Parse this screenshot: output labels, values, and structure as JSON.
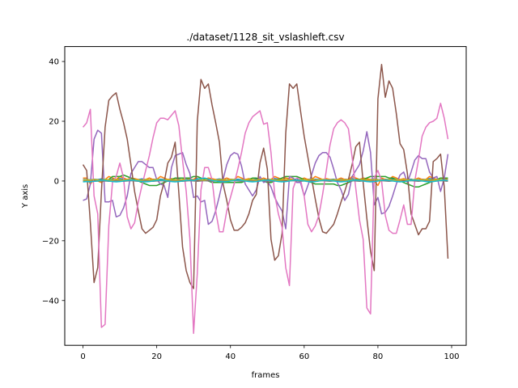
{
  "chart_data": {
    "type": "line",
    "title": "./dataset/1128_sit_vslashleft.csv",
    "xlabel": "frames",
    "ylabel": "Y axis",
    "xlim": [
      -4.95,
      103.95
    ],
    "ylim": [
      -55,
      45
    ],
    "xticks": [
      0,
      20,
      40,
      60,
      80,
      100
    ],
    "yticks": [
      -40,
      -20,
      0,
      20,
      40
    ],
    "ytick_labels": [
      "−40",
      "−20",
      "0",
      "20",
      "40"
    ],
    "grid": false,
    "legend": "none",
    "colors": [
      "#1f77b4",
      "#ff7f0e",
      "#2ca02c",
      "#d62728",
      "#9467bd",
      "#8c564b",
      "#e377c2",
      "#7f7f7f",
      "#bcbd22",
      "#17becf"
    ],
    "x": [
      0,
      1,
      2,
      3,
      4,
      5,
      6,
      7,
      8,
      9,
      10,
      11,
      12,
      13,
      14,
      15,
      16,
      17,
      18,
      19,
      20,
      21,
      22,
      23,
      24,
      25,
      26,
      27,
      28,
      29,
      30,
      31,
      32,
      33,
      34,
      35,
      36,
      37,
      38,
      39,
      40,
      41,
      42,
      43,
      44,
      45,
      46,
      47,
      48,
      49,
      50,
      51,
      52,
      53,
      54,
      55,
      56,
      57,
      58,
      59,
      60,
      61,
      62,
      63,
      64,
      65,
      66,
      67,
      68,
      69,
      70,
      71,
      72,
      73,
      74,
      75,
      76,
      77,
      78,
      79,
      80,
      81,
      82,
      83,
      84,
      85,
      86,
      87,
      88,
      89,
      90,
      91,
      92,
      93,
      94,
      95,
      96,
      97,
      98,
      99
    ],
    "series": [
      {
        "values": [
          0.5,
          0.5,
          0.4,
          0.6,
          0.5,
          0.7,
          0.5,
          0.4,
          0.6,
          0.5,
          0.8,
          0.6,
          0.5,
          0.4,
          0.6,
          0.5,
          0.7,
          0.5,
          0.4,
          0.6,
          0.5,
          0.6,
          0.5,
          0.4,
          0.7,
          0.5,
          0.6,
          0.4,
          0.5,
          0.6,
          0.5,
          0.8,
          0.6,
          0.5,
          0.4,
          0.6,
          0.5,
          0.7,
          0.5,
          0.4,
          0.6,
          0.5,
          0.6,
          0.5,
          0.4,
          0.7,
          0.5,
          0.6,
          0.4,
          0.5,
          0.6,
          0.5,
          0.8,
          0.6,
          0.5,
          0.4,
          0.6,
          0.5,
          0.7,
          0.5,
          0.4,
          0.6,
          0.5,
          0.6,
          0.5,
          0.4,
          0.7,
          0.5,
          0.6,
          0.4,
          0.5,
          0.6,
          0.5,
          0.8,
          0.6,
          0.5,
          0.4,
          0.6,
          0.5,
          0.7,
          0.5,
          0.4,
          0.6,
          0.5,
          0.6,
          0.5,
          0.4,
          0.7,
          0.5,
          0.6,
          0.4,
          0.5,
          0.6,
          0.5,
          0.8,
          0.6,
          0.5,
          0.4,
          0.6,
          0.5
        ]
      },
      {
        "values": [
          1.0,
          1.0,
          -1.0,
          0.5,
          0.0,
          -0.5,
          0.5,
          1.5,
          1.0,
          0.5,
          1.5,
          1.0,
          0.5,
          1.0,
          0.8,
          0.5,
          0.0,
          0.5,
          1.0,
          0.5,
          0.5,
          1.5,
          1.0,
          0.5,
          0.8,
          0.5,
          0.3,
          0.5,
          1.0,
          0.5,
          0.5,
          1.5,
          1.0,
          0.5,
          1.0,
          0.8,
          0.5,
          0.0,
          0.5,
          1.0,
          0.5,
          0.5,
          1.5,
          1.0,
          0.5,
          0.8,
          0.5,
          0.3,
          0.5,
          1.0,
          0.5,
          0.5,
          1.5,
          1.0,
          0.5,
          1.0,
          0.8,
          0.5,
          0.0,
          0.5,
          1.0,
          0.5,
          0.5,
          1.5,
          1.0,
          0.5,
          0.8,
          0.5,
          0.3,
          0.5,
          1.0,
          0.5,
          0.5,
          1.5,
          1.0,
          0.5,
          1.0,
          0.8,
          0.5,
          0.0,
          -1.5,
          1.0,
          0.5,
          0.5,
          1.5,
          1.0,
          0.5,
          0.8,
          0.5,
          0.3,
          0.5,
          1.0,
          0.5,
          0.5,
          1.5,
          1.0,
          0.5,
          1.0,
          0.8,
          0.5
        ]
      },
      {
        "values": [
          0.0,
          0.0,
          0.0,
          0.0,
          0.0,
          0.0,
          0.0,
          0.5,
          1.5,
          1.5,
          1.5,
          2.0,
          1.5,
          1.0,
          0.5,
          0.0,
          -0.5,
          -1.0,
          -1.5,
          -1.5,
          -1.5,
          -1.0,
          -0.5,
          0.0,
          0.5,
          1.0,
          1.0,
          1.0,
          1.0,
          1.0,
          1.5,
          1.5,
          1.0,
          0.5,
          0.0,
          -0.5,
          -0.5,
          -0.5,
          -0.5,
          -0.5,
          -0.5,
          -0.5,
          -0.5,
          -0.5,
          0.0,
          0.5,
          1.0,
          1.0,
          0.5,
          0.0,
          -0.5,
          -0.5,
          0.0,
          0.5,
          1.0,
          1.5,
          1.5,
          1.5,
          1.5,
          1.0,
          0.5,
          0.0,
          -0.5,
          -1.0,
          -1.0,
          -1.0,
          -1.0,
          -1.0,
          -1.0,
          -1.5,
          -1.5,
          -1.0,
          -0.5,
          0.0,
          0.5,
          0.5,
          0.5,
          1.0,
          1.5,
          1.5,
          1.5,
          1.5,
          1.5,
          1.0,
          1.0,
          0.5,
          0.0,
          -0.5,
          -1.0,
          -1.5,
          -2.0,
          -2.0,
          -1.5,
          -1.0,
          -0.5,
          0.0,
          0.5,
          1.0,
          1.0,
          1.0
        ]
      },
      {
        "values": [
          0.2,
          0.2,
          0.2,
          0.2,
          0.2,
          0.2,
          0.2,
          0.2,
          0.2,
          0.2,
          0.2,
          0.2,
          0.2,
          0.2,
          0.2,
          0.2,
          0.2,
          0.2,
          0.2,
          0.2,
          0.2,
          0.2,
          0.2,
          0.2,
          0.2,
          0.2,
          0.2,
          0.2,
          0.2,
          0.2,
          0.2,
          0.2,
          0.2,
          0.2,
          0.2,
          0.2,
          0.2,
          0.2,
          0.2,
          0.2,
          0.2,
          0.2,
          0.2,
          0.2,
          0.2,
          0.2,
          0.2,
          0.2,
          0.2,
          0.2,
          0.2,
          0.2,
          0.2,
          0.2,
          0.2,
          0.2,
          0.2,
          0.2,
          0.2,
          0.2,
          0.2,
          0.2,
          0.2,
          0.2,
          0.2,
          0.2,
          0.2,
          0.2,
          0.2,
          0.2,
          0.2,
          0.2,
          0.2,
          0.2,
          0.2,
          0.2,
          0.2,
          0.2,
          0.2,
          0.2,
          0.2,
          0.2,
          0.2,
          0.2,
          0.2,
          0.2,
          0.2,
          0.2,
          0.2,
          0.2,
          0.2,
          0.2,
          0.2,
          0.2,
          0.2,
          0.2,
          0.2,
          0.2,
          0.2,
          0.2
        ]
      },
      {
        "values": [
          -6.5,
          -6.0,
          -1.0,
          14.0,
          17.0,
          16.0,
          -7.0,
          -7.0,
          -6.5,
          -12.0,
          -11.5,
          -9.0,
          -5.0,
          2.5,
          4.5,
          6.5,
          6.5,
          5.5,
          4.5,
          4.5,
          0.5,
          -1.0,
          -1.5,
          -5.5,
          4.5,
          8.5,
          9.0,
          9.5,
          5.5,
          2.5,
          -5.5,
          -5.0,
          -7.0,
          -6.5,
          -14.5,
          -13.5,
          -10.0,
          -5.0,
          0.5,
          5.5,
          8.5,
          9.5,
          9.0,
          5.0,
          -1.0,
          -3.0,
          -5.0,
          -3.0,
          1.5,
          -0.5,
          0.0,
          -2.0,
          -5.5,
          -8.0,
          -10.0,
          -16.0,
          1.5,
          1.0,
          -0.5,
          -0.5,
          -5.0,
          -1.5,
          2.0,
          6.0,
          8.5,
          9.5,
          9.5,
          8.0,
          4.0,
          -0.5,
          -3.0,
          -6.5,
          -4.5,
          1.5,
          3.5,
          5.5,
          10.0,
          16.5,
          9.5,
          -8.0,
          -5.5,
          -11.0,
          -10.5,
          -8.5,
          -5.0,
          -1.0,
          2.0,
          3.0,
          -0.5,
          3.0,
          7.0,
          8.5,
          7.5,
          7.5,
          3.0,
          1.0,
          1.5,
          -3.5,
          1.0,
          9.0
        ]
      },
      {
        "values": [
          5.5,
          3.5,
          -14.0,
          -34.0,
          -29.0,
          -3.5,
          18.0,
          27.0,
          28.5,
          29.5,
          24.0,
          19.5,
          14.0,
          5.5,
          -3.5,
          -10.0,
          -16.0,
          -17.5,
          -16.5,
          -15.5,
          -13.0,
          -5.0,
          -0.5,
          6.0,
          8.0,
          13.0,
          -4.0,
          -22.0,
          -30.0,
          -34.0,
          -36.0,
          20.0,
          34.0,
          31.0,
          32.5,
          25.5,
          19.5,
          13.0,
          -1.0,
          -6.5,
          -13.0,
          -16.5,
          -16.5,
          -15.5,
          -14.0,
          -11.0,
          -6.5,
          -4.5,
          6.0,
          11.0,
          4.0,
          -19.5,
          -26.5,
          -25.0,
          -17.5,
          16.0,
          32.5,
          31.0,
          32.5,
          23.5,
          15.0,
          8.0,
          1.0,
          -6.0,
          -12.5,
          -17.0,
          -17.5,
          -16.0,
          -14.5,
          -11.0,
          -7.0,
          -3.5,
          0.5,
          5.5,
          11.5,
          13.0,
          -0.5,
          -12.5,
          -23.5,
          -30.0,
          27.5,
          39.0,
          28.0,
          33.5,
          31.0,
          22.5,
          12.5,
          10.5,
          2.5,
          -11.0,
          -14.5,
          -18.0,
          -16.0,
          -16.0,
          -13.5,
          6.5,
          7.5,
          9.0,
          -2.0,
          -26.0
        ]
      },
      {
        "values": [
          18.0,
          19.5,
          24.0,
          -5.0,
          -11.0,
          -49.0,
          -48.0,
          -15.0,
          -0.5,
          1.5,
          6.0,
          1.0,
          -12.0,
          -16.0,
          -14.0,
          -7.0,
          -1.5,
          3.5,
          8.5,
          14.5,
          19.5,
          21.0,
          21.0,
          20.5,
          22.0,
          23.5,
          18.5,
          7.0,
          -3.5,
          -19.5,
          -51.0,
          -31.0,
          -3.0,
          4.5,
          4.5,
          0.5,
          -10.0,
          -17.0,
          -17.0,
          -10.0,
          -5.5,
          -1.0,
          4.0,
          9.5,
          16.0,
          19.5,
          21.5,
          22.5,
          23.5,
          19.0,
          19.5,
          9.5,
          -4.5,
          -11.0,
          -15.5,
          -29.0,
          -35.0,
          -2.5,
          1.0,
          0.5,
          -5.0,
          -14.5,
          -17.0,
          -15.0,
          -11.5,
          -4.5,
          3.5,
          12.0,
          17.5,
          19.5,
          20.5,
          19.5,
          17.5,
          8.0,
          -2.5,
          -13.0,
          -19.5,
          -42.5,
          -44.5,
          1.0,
          3.5,
          0.0,
          -11.5,
          -16.5,
          -17.5,
          -17.5,
          -13.0,
          -8.0,
          -14.5,
          -14.5,
          0.0,
          7.0,
          15.0,
          18.0,
          19.5,
          20.0,
          21.0,
          26.0,
          21.0,
          14.0
        ]
      },
      {
        "values": [
          0.0,
          0.1,
          0.0,
          -0.1,
          0.0,
          0.1,
          0.0,
          -0.1,
          0.0,
          0.1,
          0.0,
          -0.1,
          0.0,
          0.1,
          0.0,
          -0.1,
          0.0,
          0.1,
          0.0,
          -0.1,
          0.0,
          0.1,
          0.0,
          -0.1,
          0.0,
          0.1,
          0.0,
          -0.1,
          0.0,
          0.1,
          0.0,
          -0.1,
          0.0,
          0.1,
          0.0,
          -0.1,
          0.0,
          0.1,
          0.0,
          -0.1,
          0.0,
          0.1,
          0.0,
          -0.1,
          0.0,
          0.1,
          0.0,
          -0.1,
          0.0,
          0.1,
          0.0,
          -0.1,
          0.0,
          0.1,
          0.0,
          -0.1,
          0.0,
          0.1,
          0.0,
          -0.1,
          0.0,
          0.1,
          0.0,
          -0.1,
          0.0,
          0.1,
          0.0,
          -0.1,
          0.0,
          0.1,
          0.0,
          -0.1,
          0.0,
          0.1,
          0.0,
          -0.1,
          0.0,
          0.1,
          0.0,
          -0.1,
          0.0,
          0.1,
          0.0,
          -0.1,
          0.0,
          0.1,
          0.0,
          -0.1,
          0.0,
          0.1,
          0.0,
          -0.1,
          0.0,
          0.1,
          0.0,
          -0.1,
          0.0,
          0.1,
          0.0,
          -0.1
        ]
      },
      {
        "values": [
          0.3,
          0.4,
          0.3,
          0.5,
          0.4,
          0.3,
          0.6,
          0.4,
          0.3,
          0.5,
          0.4,
          0.3,
          0.4,
          0.5,
          0.3,
          0.4,
          0.3,
          0.5,
          0.4,
          0.3,
          0.6,
          0.4,
          0.3,
          0.5,
          0.4,
          0.3,
          0.4,
          0.5,
          0.3,
          0.4,
          0.3,
          0.5,
          0.4,
          0.3,
          0.6,
          0.4,
          0.3,
          0.5,
          0.4,
          0.3,
          0.4,
          0.5,
          0.3,
          0.4,
          0.3,
          0.5,
          0.4,
          0.3,
          0.6,
          0.4,
          0.3,
          0.5,
          0.4,
          0.3,
          0.4,
          0.5,
          0.3,
          0.4,
          0.3,
          0.5,
          0.4,
          0.3,
          0.6,
          0.4,
          0.3,
          0.5,
          0.4,
          0.3,
          0.4,
          0.5,
          0.3,
          0.4,
          0.3,
          0.5,
          0.4,
          0.3,
          0.6,
          0.4,
          0.3,
          0.5,
          0.4,
          0.3,
          0.4,
          0.5,
          0.3,
          0.4,
          0.3,
          0.5,
          0.4,
          0.3,
          0.6,
          0.4,
          0.3,
          0.5,
          0.4,
          0.3,
          0.4,
          0.5,
          0.3,
          0.4
        ]
      },
      {
        "values": [
          -0.3,
          -0.2,
          -0.3,
          -0.1,
          0.0,
          0.3,
          0.2,
          0.0,
          -0.2,
          -0.3,
          -0.2,
          0.0,
          0.2,
          0.3,
          0.2,
          0.0,
          -0.2,
          -0.3,
          -0.2,
          0.0,
          0.2,
          0.3,
          0.2,
          0.0,
          -0.2,
          -0.3,
          -0.2,
          0.0,
          0.2,
          0.3,
          0.2,
          0.5,
          0.8,
          1.0,
          0.6,
          0.2,
          0.0,
          -0.2,
          -0.3,
          -0.2,
          0.0,
          0.2,
          0.3,
          0.2,
          0.0,
          -0.2,
          -0.3,
          -0.2,
          0.0,
          0.2,
          0.3,
          0.2,
          0.0,
          -0.2,
          -0.3,
          -0.2,
          0.0,
          0.2,
          0.3,
          0.2,
          0.0,
          -0.2,
          -0.3,
          -0.2,
          0.0,
          0.2,
          0.3,
          0.2,
          0.0,
          -0.2,
          -0.3,
          -0.2,
          0.0,
          0.2,
          0.3,
          0.2,
          0.0,
          -0.2,
          -0.3,
          -0.2,
          0.0,
          0.2,
          0.3,
          0.2,
          0.0,
          -0.2,
          -0.3,
          -0.2,
          0.0,
          0.2,
          0.3,
          0.2,
          0.0,
          -0.2,
          -0.3,
          -0.2,
          0.0,
          0.2,
          0.3,
          0.2
        ]
      }
    ]
  }
}
